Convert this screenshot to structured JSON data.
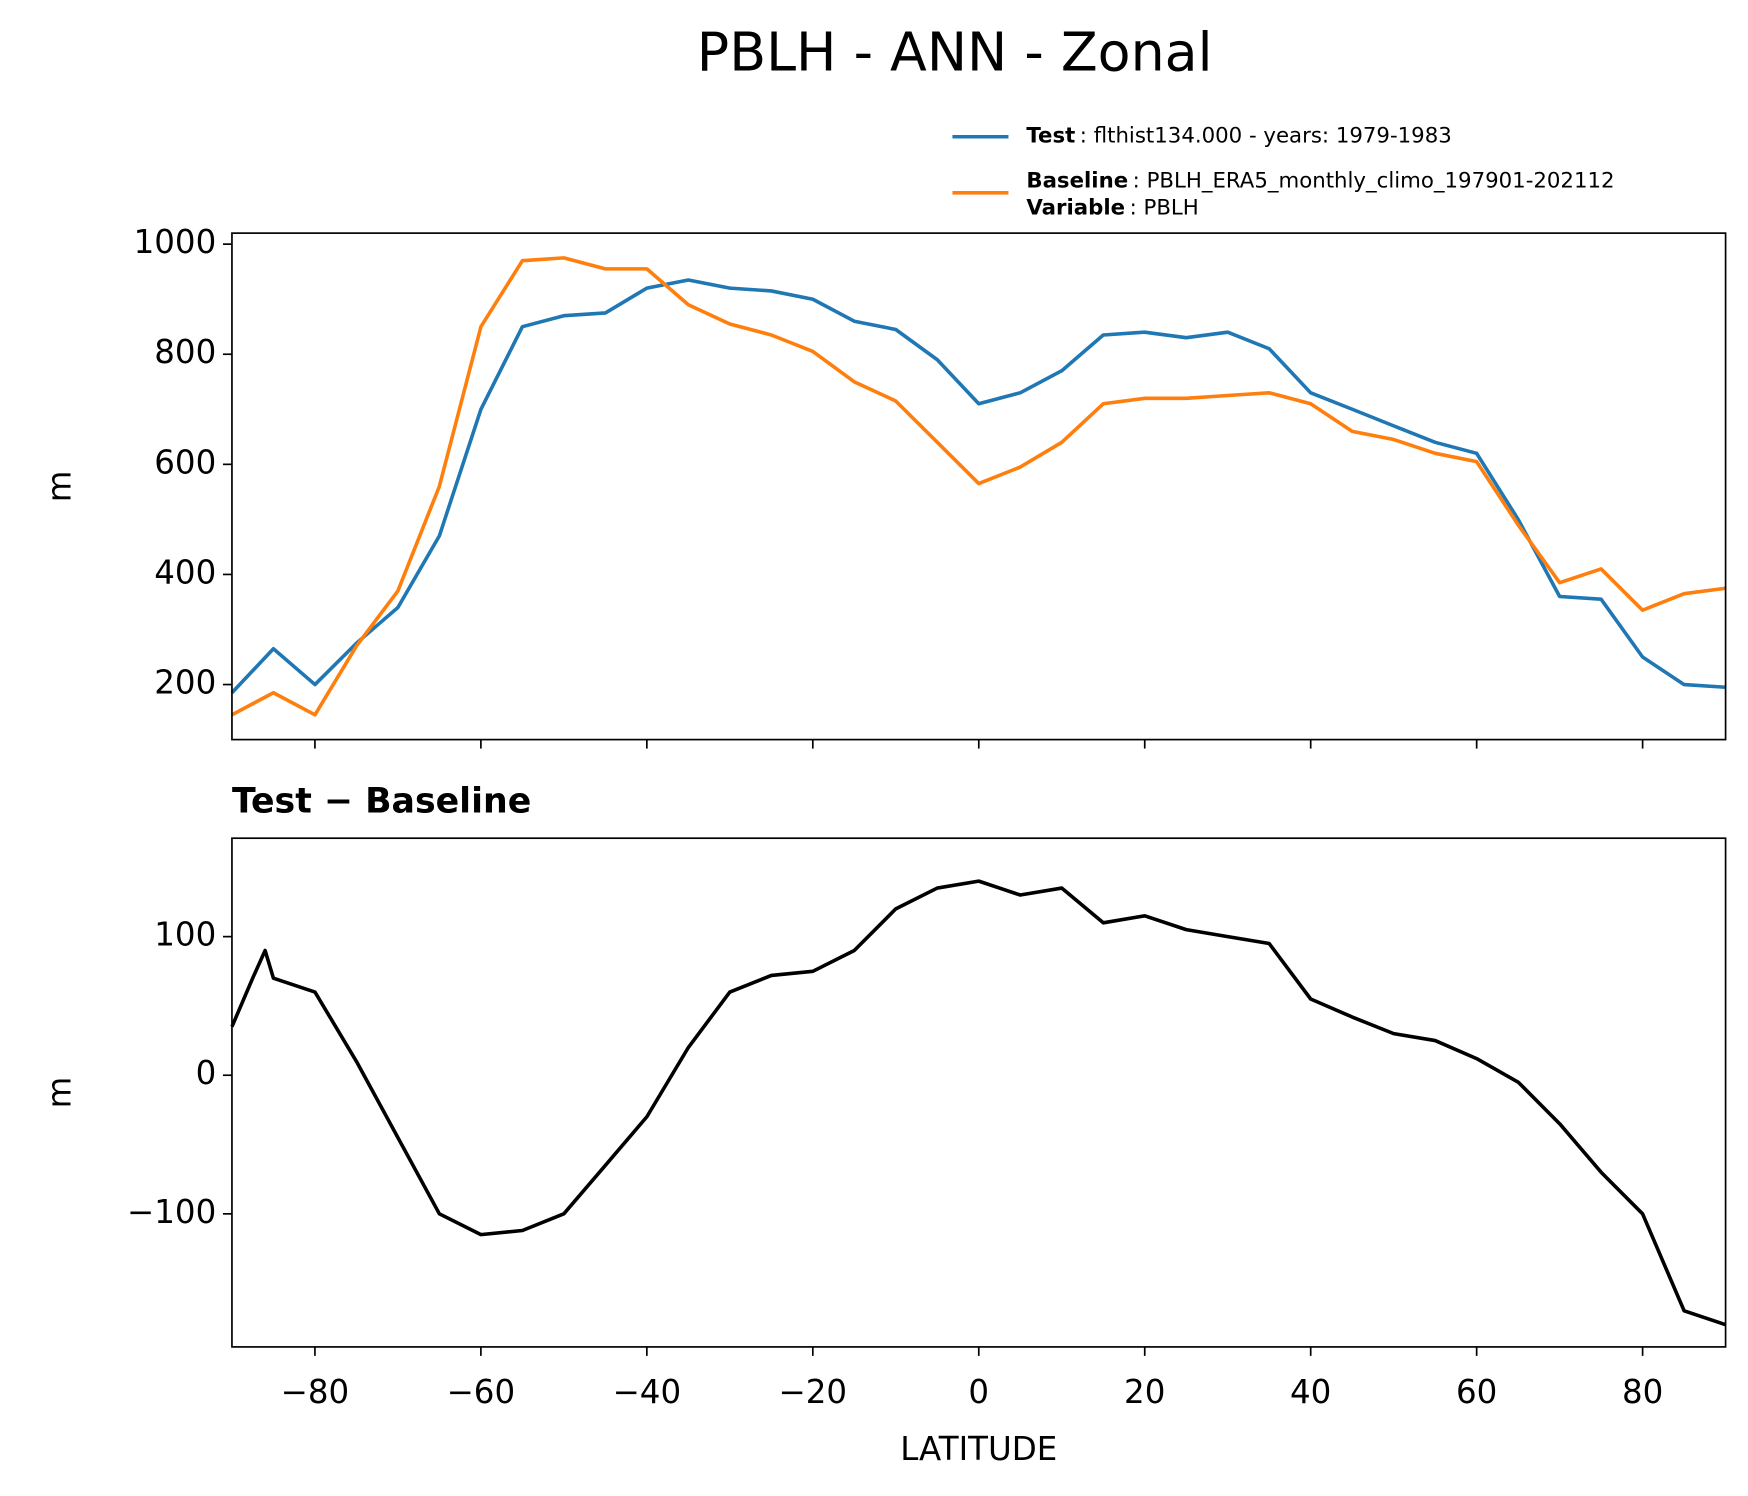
{
  "title": "PBLH - ANN - Zonal",
  "chart_data": [
    {
      "type": "line",
      "ylabel": "m",
      "xlim": [
        -90,
        90
      ],
      "ylim": [
        100,
        1020
      ],
      "xticks": [
        -80,
        -60,
        -40,
        -20,
        0,
        20,
        40,
        60,
        80
      ],
      "yticks": [
        200,
        400,
        600,
        800,
        1000
      ],
      "x": [
        -90,
        -85,
        -80,
        -75,
        -70,
        -65,
        -60,
        -55,
        -50,
        -45,
        -40,
        -35,
        -30,
        -25,
        -20,
        -15,
        -10,
        -5,
        0,
        5,
        10,
        15,
        20,
        25,
        30,
        35,
        40,
        45,
        50,
        55,
        60,
        65,
        70,
        75,
        80,
        85,
        90
      ],
      "series": [
        {
          "name": "Test",
          "legend_text": ": flthist134.000 - years: 1979-1983",
          "color": "#1f77b4",
          "values": [
            185,
            265,
            200,
            275,
            340,
            470,
            700,
            850,
            870,
            875,
            920,
            935,
            920,
            915,
            900,
            860,
            845,
            790,
            710,
            730,
            770,
            835,
            840,
            830,
            840,
            810,
            730,
            700,
            670,
            640,
            620,
            500,
            360,
            355,
            250,
            200,
            195
          ]
        },
        {
          "name": "Baseline",
          "legend_text": ": PBLH_ERA5_monthly_climo_197901-202112",
          "color": "#ff7f0e",
          "values": [
            145,
            185,
            145,
            270,
            370,
            560,
            850,
            970,
            975,
            955,
            955,
            890,
            855,
            835,
            805,
            750,
            715,
            640,
            565,
            595,
            640,
            710,
            720,
            720,
            725,
            730,
            710,
            660,
            645,
            620,
            605,
            490,
            385,
            410,
            335,
            365,
            375
          ]
        }
      ],
      "legend_note": {
        "label": "Variable",
        "text": ": PBLH"
      }
    },
    {
      "type": "line",
      "title": "Test − Baseline",
      "ylabel": "m",
      "xlabel": "LATITUDE",
      "xlim": [
        -90,
        90
      ],
      "ylim": [
        -196,
        171
      ],
      "xticks": [
        {
          "value": -80,
          "label": "−80"
        },
        {
          "value": -60,
          "label": "−60"
        },
        {
          "value": -40,
          "label": "−40"
        },
        {
          "value": -20,
          "label": "−20"
        },
        0,
        20,
        40,
        60,
        80
      ],
      "yticks": [
        {
          "value": -100,
          "label": "−100"
        },
        0,
        100
      ],
      "x": [
        -90,
        -87.5,
        -86,
        -85,
        -80,
        -75,
        -70,
        -65,
        -60,
        -55,
        -50,
        -45,
        -40,
        -35,
        -30,
        -25,
        -20,
        -15,
        -10,
        -5,
        0,
        5,
        10,
        15,
        20,
        25,
        30,
        35,
        40,
        45,
        50,
        55,
        60,
        65,
        70,
        75,
        80,
        85,
        90
      ],
      "series": [
        {
          "color": "#000000",
          "values": [
            35,
            70,
            90,
            70,
            60,
            10,
            -45,
            -100,
            -115,
            -112,
            -100,
            -65,
            -30,
            20,
            60,
            72,
            75,
            90,
            120,
            135,
            140,
            130,
            135,
            110,
            115,
            105,
            100,
            95,
            55,
            42,
            30,
            25,
            12,
            -5,
            -35,
            -70,
            -100,
            -170,
            -180
          ]
        }
      ]
    }
  ]
}
